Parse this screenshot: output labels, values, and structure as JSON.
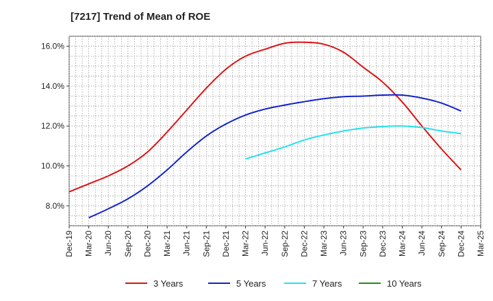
{
  "chart_data": {
    "type": "line",
    "title": "[7217]  Trend of Mean of ROE",
    "xlabel": "",
    "ylabel": "",
    "x_ticks": [
      "Dec-19",
      "Mar-20",
      "Jun-20",
      "Sep-20",
      "Dec-20",
      "Mar-21",
      "Jun-21",
      "Sep-21",
      "Dec-21",
      "Mar-22",
      "Jun-22",
      "Sep-22",
      "Dec-22",
      "Mar-23",
      "Jun-23",
      "Sep-23",
      "Dec-23",
      "Mar-24",
      "Jun-24",
      "Sep-24",
      "Dec-24",
      "Mar-25"
    ],
    "y_ticks": [
      8.0,
      10.0,
      12.0,
      14.0,
      16.0
    ],
    "y_tick_labels": [
      "8.0%",
      "10.0%",
      "12.0%",
      "14.0%",
      "16.0%"
    ],
    "ylim": [
      7.0,
      16.5
    ],
    "grid": true,
    "legend_position": "bottom",
    "series": [
      {
        "name": "3 Years",
        "color": "#dd1111",
        "values": [
          8.7,
          9.1,
          9.5,
          10.0,
          10.7,
          11.7,
          12.8,
          13.9,
          14.85,
          15.5,
          15.85,
          16.15,
          16.2,
          16.1,
          15.7,
          14.95,
          14.2,
          13.2,
          12.0,
          10.85,
          9.8
        ]
      },
      {
        "name": "5 Years",
        "color": "#1122cc",
        "values": [
          null,
          7.4,
          7.85,
          8.35,
          9.0,
          9.8,
          10.7,
          11.5,
          12.1,
          12.55,
          12.85,
          13.05,
          13.22,
          13.37,
          13.47,
          13.5,
          13.55,
          13.55,
          13.4,
          13.15,
          12.75
        ]
      },
      {
        "name": "7 Years",
        "color": "#22e0ee",
        "values": [
          null,
          null,
          null,
          null,
          null,
          null,
          null,
          null,
          null,
          10.35,
          10.65,
          10.95,
          11.3,
          11.55,
          11.75,
          11.9,
          11.97,
          12.0,
          11.92,
          11.75,
          11.62
        ]
      },
      {
        "name": "10 Years",
        "color": "#228822",
        "values": []
      }
    ]
  }
}
